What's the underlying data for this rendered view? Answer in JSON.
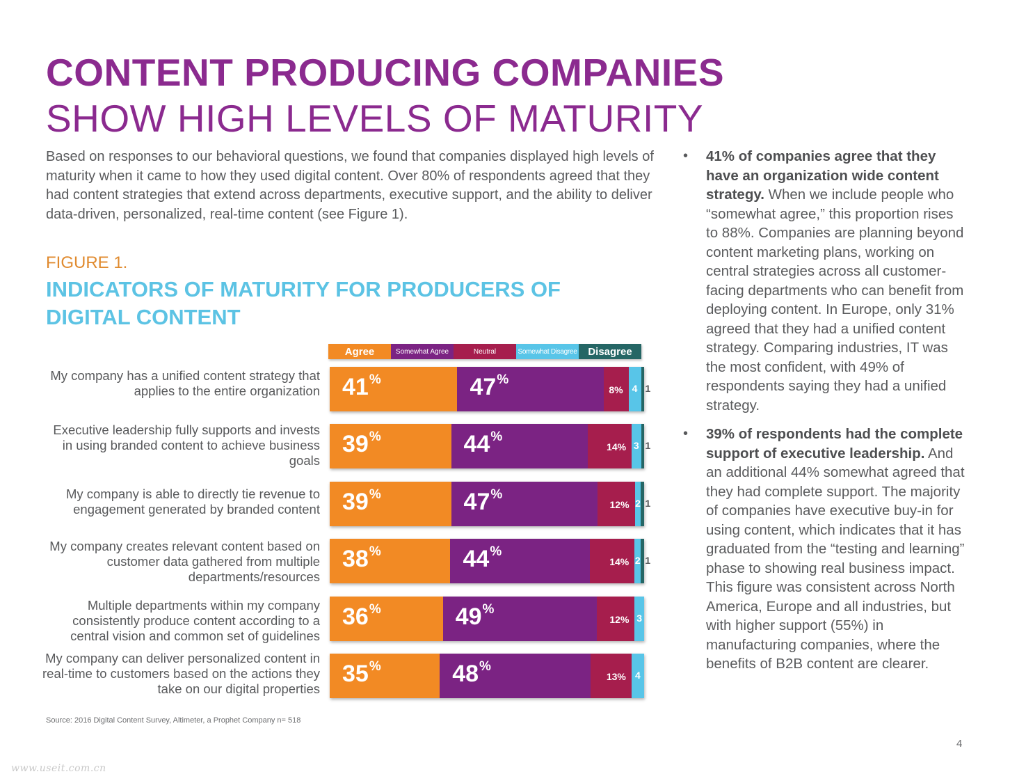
{
  "header": {
    "title_bold": "CONTENT PRODUCING COMPANIES",
    "title_light": "SHOW HIGH LEVELS OF MATURITY"
  },
  "intro": "Based on responses to our behavioral questions, we found that companies displayed high levels of maturity when it came to how they used digital content. Over 80% of respondents agreed that they had content strategies that extend across departments, executive support, and the ability to deliver data-driven, personalized, real-time content (see Figure 1).",
  "figure": {
    "number": "FIGURE 1.",
    "title": "INDICATORS OF MATURITY FOR PRODUCERS OF DIGITAL CONTENT",
    "source": "Source: 2016 Digital Content Survey, Altimeter, a Prophet Company n= 518"
  },
  "chart_data": {
    "type": "bar",
    "orientation": "horizontal",
    "stacked": true,
    "title": "INDICATORS OF MATURITY FOR PRODUCERS OF DIGITAL CONTENT",
    "xlabel": "",
    "ylabel": "",
    "xlim": [
      0,
      100
    ],
    "unit": "%",
    "legend_position": "top",
    "categories": [
      "My company has a unified content strategy that applies to the entire organization",
      "Executive leadership fully supports and invests in using branded content to achieve business goals",
      "My company is able to directly tie revenue to engagement generated by branded content",
      "My company creates relevant content based on customer data gathered from multiple departments/resources",
      "Multiple departments within my company consistently produce content according to a central vision and common set of guidelines",
      "My company can deliver personalized content in real-time to customers based on the actions they take on our digital properties"
    ],
    "series": [
      {
        "name": "Agree",
        "color": "#f28a24",
        "values": [
          41,
          39,
          39,
          38,
          36,
          35
        ]
      },
      {
        "name": "Somewhat Agree",
        "color": "#7b2383",
        "values": [
          47,
          44,
          47,
          44,
          49,
          48
        ]
      },
      {
        "name": "Neutral",
        "color": "#a61e4d",
        "values": [
          8,
          14,
          12,
          14,
          12,
          13
        ]
      },
      {
        "name": "Somewhat Disagree",
        "color": "#58c5e8",
        "values": [
          4,
          3,
          2,
          2,
          3,
          4
        ]
      },
      {
        "name": "Disagree",
        "color": "#256665",
        "values": [
          1,
          1,
          1,
          1,
          0,
          0
        ]
      }
    ],
    "data_labels": [
      [
        "41",
        "47",
        "8%",
        "4",
        "1"
      ],
      [
        "39",
        "44",
        "14%",
        "3",
        "1"
      ],
      [
        "39",
        "47",
        "12%",
        "2",
        "1"
      ],
      [
        "38",
        "44",
        "14%",
        "2",
        "1"
      ],
      [
        "36",
        "49",
        "12%",
        "3",
        ""
      ],
      [
        "35",
        "48",
        "13%",
        "4",
        ""
      ]
    ]
  },
  "bullets": [
    {
      "bold": "41% of companies agree that they have an organization wide content strategy.",
      "text": " When we include people who “somewhat agree,” this proportion rises to 88%. Companies are planning beyond content marketing plans, working on central strategies across all customer-facing departments who can benefit from deploying content. In Europe, only 31% agreed that they had a unified content strategy. Comparing industries, IT was the most confident, with 49% of respondents saying they had a unified strategy."
    },
    {
      "bold": "39% of respondents had the complete support of executive leadership.",
      "text": " And an additional 44% somewhat agreed that they had complete support. The majority of companies have executive buy-in for using content, which indicates that it has graduated from the “testing and learning” phase to showing real business impact. This figure was consistent across North America, Europe and all industries, but with higher support (55%) in manufacturing companies, where the benefits of B2B content are clearer."
    }
  ],
  "footer": {
    "page_number": "4",
    "watermark": "www.useit.com.cn"
  },
  "percent_sign": "%",
  "bullet_glyph": "•"
}
